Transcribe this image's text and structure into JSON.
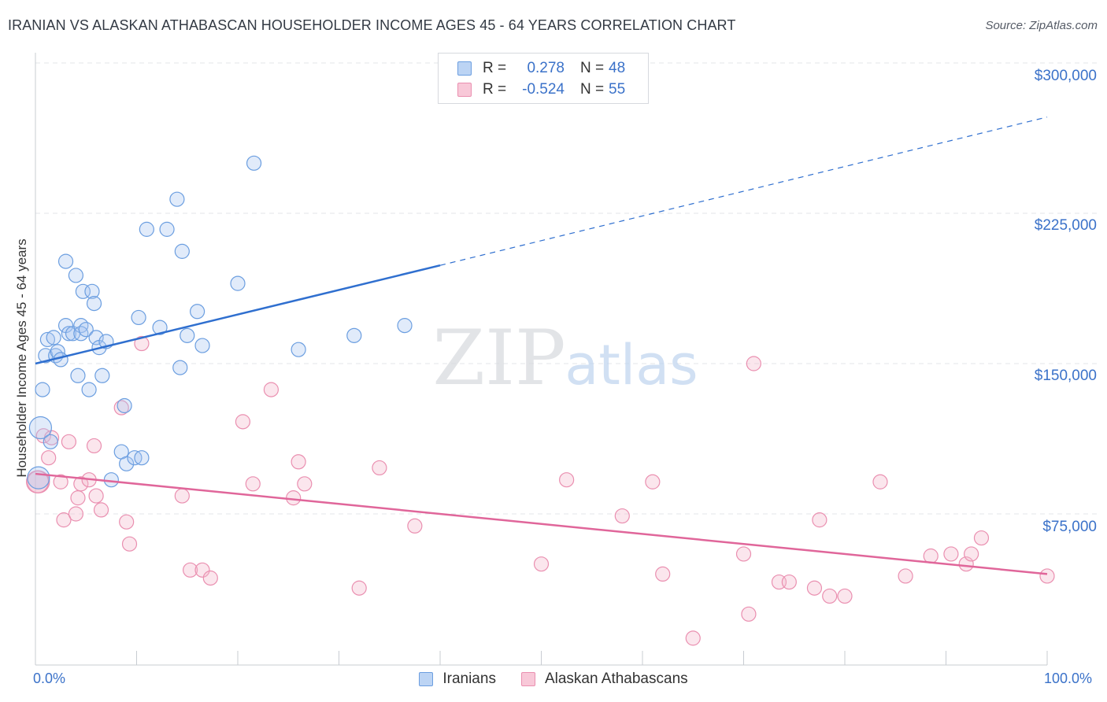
{
  "title": "IRANIAN VS ALASKAN ATHABASCAN HOUSEHOLDER INCOME AGES 45 - 64 YEARS CORRELATION CHART",
  "source": "Source: ZipAtlas.com",
  "watermark": {
    "zip": "ZIP",
    "atlas": "atlas"
  },
  "legend_top": {
    "rows": [
      {
        "r_label": "R =",
        "r_value": "0.278",
        "n_label": "N =",
        "n_value": "48"
      },
      {
        "r_label": "R =",
        "r_value": "-0.524",
        "n_label": "N =",
        "n_value": "55"
      }
    ]
  },
  "legend_bottom": [
    "Iranians",
    "Alaskan Athabascans"
  ],
  "chart_data": {
    "type": "scatter",
    "title": "IRANIAN VS ALASKAN ATHABASCAN HOUSEHOLDER INCOME AGES 45 - 64 YEARS CORRELATION CHART",
    "xlabel": "",
    "ylabel": "Householder Income Ages 45 - 64 years",
    "xlim": [
      0,
      100
    ],
    "ylim": [
      10000,
      310000
    ],
    "x_tick_labels": [
      "0.0%",
      "100.0%"
    ],
    "y_ticks": [
      75000,
      150000,
      225000,
      300000
    ],
    "y_tick_labels": [
      "$75,000",
      "$150,000",
      "$225,000",
      "$300,000"
    ],
    "grid": true,
    "legend_position": "top-center",
    "colors": {
      "iranians": "#6b9ee0",
      "alaskan": "#ea8fb0",
      "iranians_line": "#2f6fcf",
      "alaskan_line": "#e0669a"
    },
    "series": [
      {
        "name": "Iranians",
        "r": 0.278,
        "n": 48,
        "trend": {
          "x0": 0,
          "y0": 150000,
          "x1": 40,
          "y1": 199000,
          "dashed_to_x": 100,
          "dashed_to_y": 273000
        },
        "points": [
          [
            0.3,
            93000
          ],
          [
            0.5,
            118000
          ],
          [
            0.7,
            137000
          ],
          [
            1.0,
            154000
          ],
          [
            1.2,
            162000
          ],
          [
            1.5,
            111000
          ],
          [
            1.8,
            163000
          ],
          [
            2.0,
            154000
          ],
          [
            2.2,
            156000
          ],
          [
            2.5,
            152000
          ],
          [
            3.0,
            201000
          ],
          [
            3.0,
            169000
          ],
          [
            3.3,
            165000
          ],
          [
            3.7,
            165000
          ],
          [
            4.0,
            194000
          ],
          [
            4.2,
            144000
          ],
          [
            4.5,
            169000
          ],
          [
            4.5,
            165000
          ],
          [
            4.7,
            186000
          ],
          [
            5.0,
            167000
          ],
          [
            5.3,
            137000
          ],
          [
            5.6,
            186000
          ],
          [
            5.8,
            180000
          ],
          [
            6.0,
            163000
          ],
          [
            6.3,
            158000
          ],
          [
            6.6,
            144000
          ],
          [
            7.0,
            161000
          ],
          [
            7.5,
            92000
          ],
          [
            8.5,
            106000
          ],
          [
            8.8,
            129000
          ],
          [
            9.0,
            100000
          ],
          [
            9.8,
            103000
          ],
          [
            10.2,
            173000
          ],
          [
            10.5,
            103000
          ],
          [
            11.0,
            217000
          ],
          [
            12.3,
            168000
          ],
          [
            13.0,
            217000
          ],
          [
            14.0,
            232000
          ],
          [
            14.3,
            148000
          ],
          [
            14.5,
            206000
          ],
          [
            15.0,
            164000
          ],
          [
            16.0,
            176000
          ],
          [
            16.5,
            159000
          ],
          [
            20.0,
            190000
          ],
          [
            21.6,
            250000
          ],
          [
            26.0,
            157000
          ],
          [
            31.5,
            164000
          ],
          [
            36.5,
            169000
          ]
        ]
      },
      {
        "name": "Alaskan Athabascans",
        "r": -0.524,
        "n": 55,
        "trend": {
          "x0": 0,
          "y0": 95000,
          "x1": 100,
          "y1": 45000
        },
        "points": [
          [
            0.3,
            91000
          ],
          [
            0.8,
            114000
          ],
          [
            1.3,
            103000
          ],
          [
            1.6,
            113000
          ],
          [
            2.5,
            91000
          ],
          [
            2.8,
            72000
          ],
          [
            3.3,
            111000
          ],
          [
            4.0,
            75000
          ],
          [
            4.2,
            83000
          ],
          [
            4.5,
            90000
          ],
          [
            5.3,
            92000
          ],
          [
            5.8,
            109000
          ],
          [
            6.0,
            84000
          ],
          [
            6.5,
            77000
          ],
          [
            8.5,
            128000
          ],
          [
            9.0,
            71000
          ],
          [
            9.3,
            60000
          ],
          [
            10.5,
            160000
          ],
          [
            14.5,
            84000
          ],
          [
            15.3,
            47000
          ],
          [
            16.5,
            47000
          ],
          [
            17.3,
            43000
          ],
          [
            20.5,
            121000
          ],
          [
            21.5,
            90000
          ],
          [
            23.3,
            137000
          ],
          [
            25.5,
            83000
          ],
          [
            26.0,
            101000
          ],
          [
            26.6,
            90000
          ],
          [
            32.0,
            38000
          ],
          [
            34.0,
            98000
          ],
          [
            37.5,
            69000
          ],
          [
            50.0,
            50000
          ],
          [
            52.5,
            92000
          ],
          [
            58.0,
            74000
          ],
          [
            61.0,
            91000
          ],
          [
            62.0,
            45000
          ],
          [
            65.0,
            13000
          ],
          [
            70.0,
            55000
          ],
          [
            70.5,
            25000
          ],
          [
            71.0,
            150000
          ],
          [
            73.5,
            41000
          ],
          [
            74.5,
            41000
          ],
          [
            77.0,
            38000
          ],
          [
            77.5,
            72000
          ],
          [
            78.5,
            34000
          ],
          [
            80.0,
            34000
          ],
          [
            83.5,
            91000
          ],
          [
            86.0,
            44000
          ],
          [
            88.5,
            54000
          ],
          [
            90.5,
            55000
          ],
          [
            92.0,
            50000
          ],
          [
            92.5,
            55000
          ],
          [
            93.5,
            63000
          ],
          [
            100.0,
            44000
          ],
          [
            0.2,
            91000
          ]
        ]
      }
    ]
  }
}
